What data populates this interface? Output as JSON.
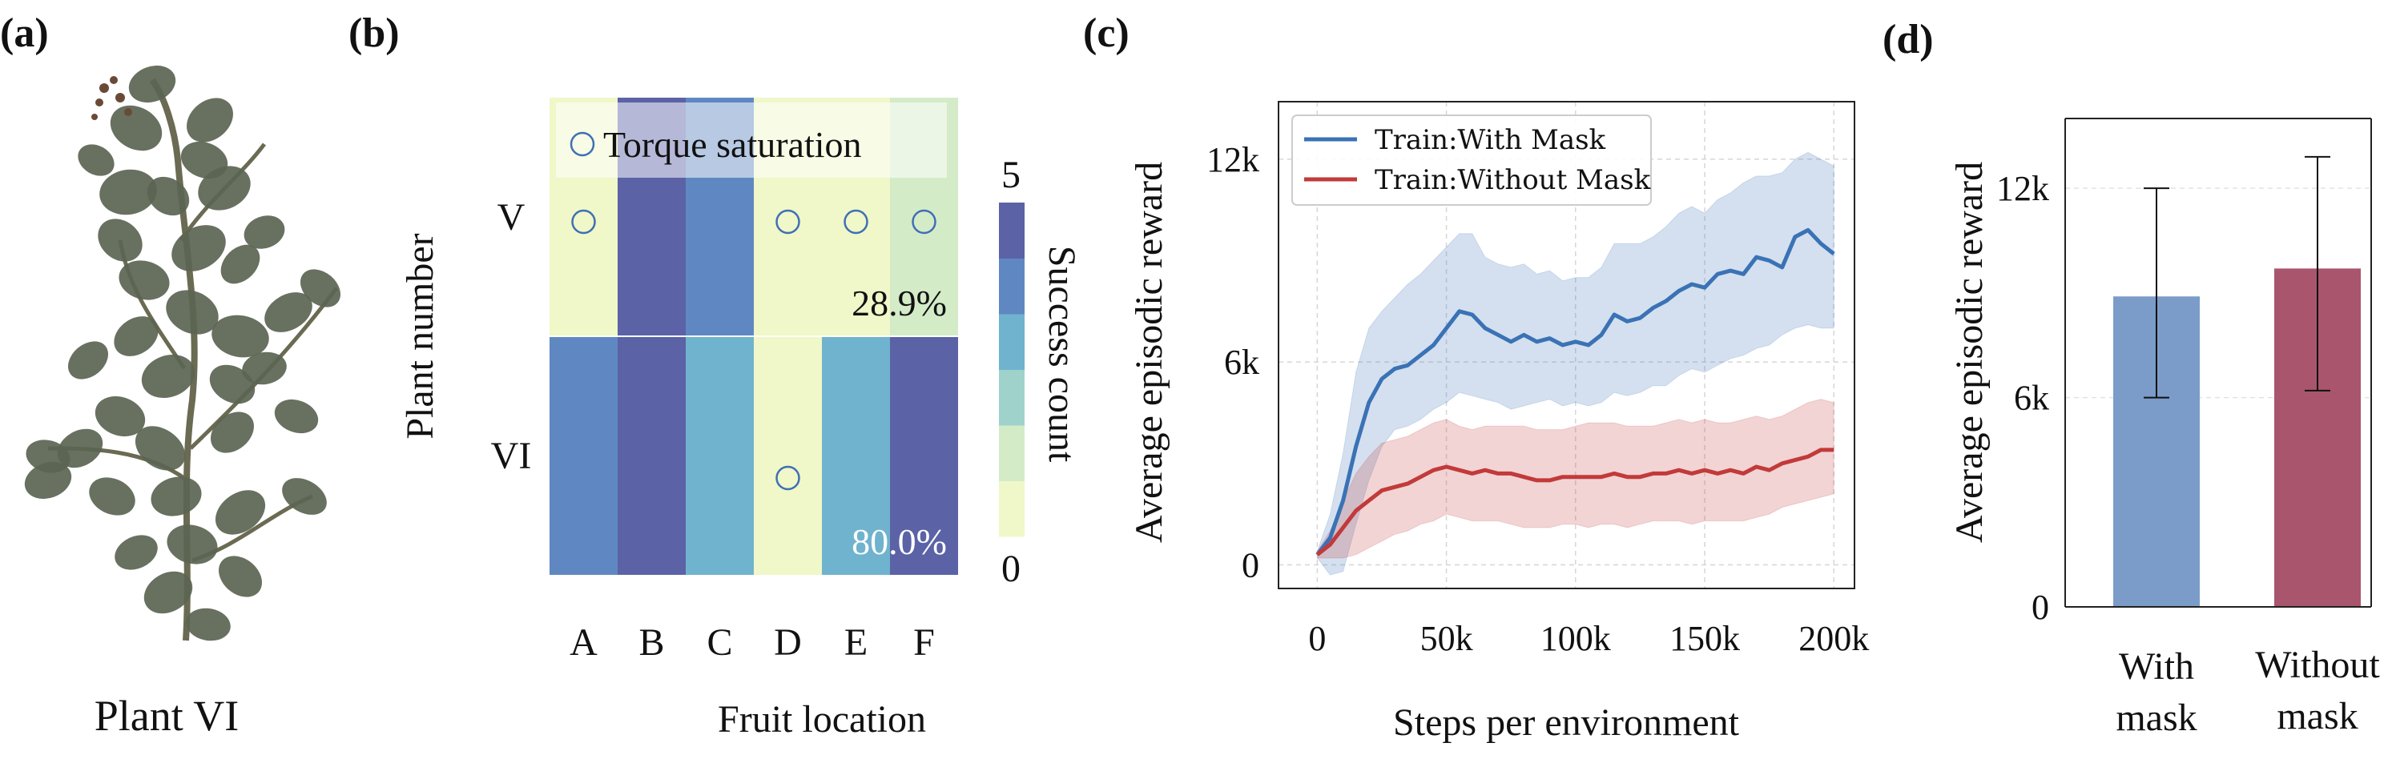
{
  "panel_labels": {
    "a": "(a)",
    "b": "(b)",
    "c": "(c)",
    "d": "(d)"
  },
  "plant_caption": "Plant VI",
  "colors": {
    "heat_levels": [
      "#f0f7c8",
      "#d4ebc8",
      "#9fd2cb",
      "#70b3ce",
      "#5f88c2",
      "#5b62a6"
    ],
    "blue": "#3a72b5",
    "red": "#c23a3a",
    "bar_blue": "#7b9cc8",
    "bar_red": "#a9556e",
    "marker": "#3f6fb5",
    "leaf": "#5b6452"
  },
  "chart_data": [
    {
      "type": "heatmap",
      "id": "b",
      "title": "",
      "xlabel": "Fruit location",
      "ylabel": "Plant number",
      "x_categories": [
        "A",
        "B",
        "C",
        "D",
        "E",
        "F"
      ],
      "y_categories": [
        "V",
        "VI"
      ],
      "values": [
        [
          0,
          5,
          4,
          0,
          0,
          1
        ],
        [
          4,
          5,
          3,
          0,
          3,
          5
        ]
      ],
      "torque_saturation": [
        [
          true,
          false,
          false,
          true,
          true,
          true
        ],
        [
          false,
          false,
          false,
          true,
          false,
          false
        ]
      ],
      "row_annotations": [
        "28.9%",
        "80.0%"
      ],
      "legend": "Torque saturation",
      "colorbar": {
        "label": "Success count",
        "min": 0,
        "max": 5,
        "min_label": "0",
        "max_label": "5"
      }
    },
    {
      "type": "line",
      "id": "c",
      "xlabel": "Steps per environment",
      "ylabel": "Average episodic reward",
      "xlim": [
        -15000,
        208000
      ],
      "ylim": [
        -700,
        13700
      ],
      "x_ticks": [
        0,
        50000,
        100000,
        150000,
        200000
      ],
      "x_tick_labels": [
        "0",
        "50k",
        "100k",
        "150k",
        "200k"
      ],
      "y_ticks": [
        0,
        6000,
        12000
      ],
      "y_tick_labels": [
        "0",
        "6k",
        "12k"
      ],
      "grid": true,
      "legend_position": "top-left",
      "x": [
        0,
        5000,
        10000,
        15000,
        20000,
        25000,
        30000,
        35000,
        40000,
        45000,
        50000,
        55000,
        60000,
        65000,
        70000,
        75000,
        80000,
        85000,
        90000,
        95000,
        100000,
        105000,
        110000,
        115000,
        120000,
        125000,
        130000,
        135000,
        140000,
        145000,
        150000,
        155000,
        160000,
        165000,
        170000,
        175000,
        180000,
        185000,
        190000,
        195000,
        200000
      ],
      "series": [
        {
          "name": "Train:With Mask",
          "color_key": "blue",
          "values": [
            300,
            800,
            1900,
            3500,
            4800,
            5500,
            5800,
            5900,
            6200,
            6500,
            7000,
            7500,
            7400,
            7000,
            6800,
            6600,
            6800,
            6600,
            6700,
            6500,
            6600,
            6500,
            6800,
            7400,
            7200,
            7300,
            7600,
            7800,
            8100,
            8300,
            8200,
            8600,
            8700,
            8600,
            9100,
            9000,
            8800,
            9700,
            9900,
            9500,
            9200
          ],
          "lower": [
            200,
            -300,
            -200,
            1200,
            2500,
            3500,
            4000,
            4100,
            4300,
            4600,
            4800,
            5100,
            5000,
            4900,
            4800,
            4600,
            4700,
            4800,
            4900,
            4700,
            4800,
            4700,
            4800,
            5100,
            5000,
            5100,
            5300,
            5300,
            5600,
            5800,
            5700,
            5900,
            6100,
            6200,
            6400,
            6500,
            6800,
            7000,
            7100,
            7000,
            7000
          ],
          "upper": [
            400,
            1500,
            3300,
            5700,
            7000,
            7500,
            7900,
            8300,
            8600,
            9000,
            9400,
            9800,
            9800,
            9100,
            8900,
            8800,
            8900,
            8600,
            8700,
            8400,
            8500,
            8500,
            8800,
            9500,
            9500,
            9500,
            9700,
            10000,
            10400,
            10600,
            10400,
            10800,
            11000,
            11300,
            11500,
            11500,
            11600,
            12000,
            12200,
            12000,
            11800
          ]
        },
        {
          "name": "Train:Without Mask",
          "color_key": "red",
          "values": [
            300,
            600,
            1100,
            1600,
            1900,
            2200,
            2300,
            2400,
            2600,
            2800,
            2900,
            2800,
            2700,
            2800,
            2700,
            2700,
            2600,
            2500,
            2500,
            2600,
            2600,
            2600,
            2600,
            2700,
            2600,
            2600,
            2700,
            2700,
            2800,
            2700,
            2800,
            2700,
            2800,
            2700,
            2900,
            2800,
            3000,
            3100,
            3200,
            3400,
            3400
          ],
          "lower": [
            200,
            200,
            200,
            300,
            500,
            700,
            900,
            1000,
            1200,
            1300,
            1500,
            1400,
            1300,
            1300,
            1300,
            1200,
            1100,
            1100,
            1100,
            1200,
            1200,
            1100,
            1200,
            1200,
            1100,
            1200,
            1300,
            1300,
            1300,
            1200,
            1300,
            1300,
            1300,
            1300,
            1400,
            1500,
            1700,
            1800,
            1900,
            2000,
            2100
          ],
          "upper": [
            400,
            1000,
            1900,
            2700,
            3200,
            3600,
            3700,
            3800,
            4000,
            4200,
            4300,
            4100,
            4000,
            4100,
            4100,
            4100,
            4100,
            4000,
            4000,
            4000,
            4100,
            4200,
            4200,
            4200,
            4100,
            4100,
            4100,
            4200,
            4300,
            4200,
            4300,
            4200,
            4200,
            4300,
            4400,
            4300,
            4400,
            4600,
            4800,
            4900,
            4800
          ]
        }
      ]
    },
    {
      "type": "bar",
      "id": "d",
      "ylabel": "Average episodic reward",
      "ylim": [
        0,
        14000
      ],
      "y_ticks": [
        0,
        6000,
        12000
      ],
      "y_tick_labels": [
        "0",
        "6k",
        "12k"
      ],
      "categories": [
        [
          "With",
          "mask"
        ],
        [
          "Without",
          "mask"
        ]
      ],
      "values": [
        8900,
        9700
      ],
      "error_low": [
        6000,
        6200
      ],
      "error_high": [
        12000,
        12900
      ],
      "color_keys": [
        "bar_blue",
        "bar_red"
      ]
    }
  ]
}
